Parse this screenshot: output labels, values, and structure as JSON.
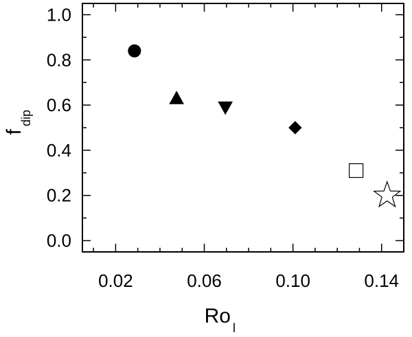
{
  "chart_data": {
    "type": "scatter",
    "title": "",
    "xlabel": "Ro",
    "xlabel_sub": "l",
    "ylabel": "f",
    "ylabel_sub": "dip",
    "xlim": [
      0.005,
      0.15
    ],
    "ylim": [
      -0.05,
      1.05
    ],
    "x_ticks": [
      {
        "value": 0.02,
        "label": "0.02"
      },
      {
        "value": 0.06,
        "label": "0.06"
      },
      {
        "value": 0.1,
        "label": "0.10"
      },
      {
        "value": 0.14,
        "label": "0.14"
      }
    ],
    "y_ticks": [
      {
        "value": 0.0,
        "label": "0.0"
      },
      {
        "value": 0.2,
        "label": "0.2"
      },
      {
        "value": 0.4,
        "label": "0.4"
      },
      {
        "value": 0.6,
        "label": "0.6"
      },
      {
        "value": 0.8,
        "label": "0.8"
      },
      {
        "value": 1.0,
        "label": "1.0"
      }
    ],
    "grid": false,
    "points": [
      {
        "x": 0.0285,
        "y": 0.84,
        "marker": "circle",
        "filled": true
      },
      {
        "x": 0.0475,
        "y": 0.63,
        "marker": "triangle-up",
        "filled": true
      },
      {
        "x": 0.0695,
        "y": 0.59,
        "marker": "triangle-down",
        "filled": true
      },
      {
        "x": 0.101,
        "y": 0.5,
        "marker": "diamond",
        "filled": true
      },
      {
        "x": 0.1285,
        "y": 0.31,
        "marker": "square",
        "filled": false
      },
      {
        "x": 0.1425,
        "y": 0.2,
        "marker": "star",
        "filled": false
      }
    ]
  }
}
